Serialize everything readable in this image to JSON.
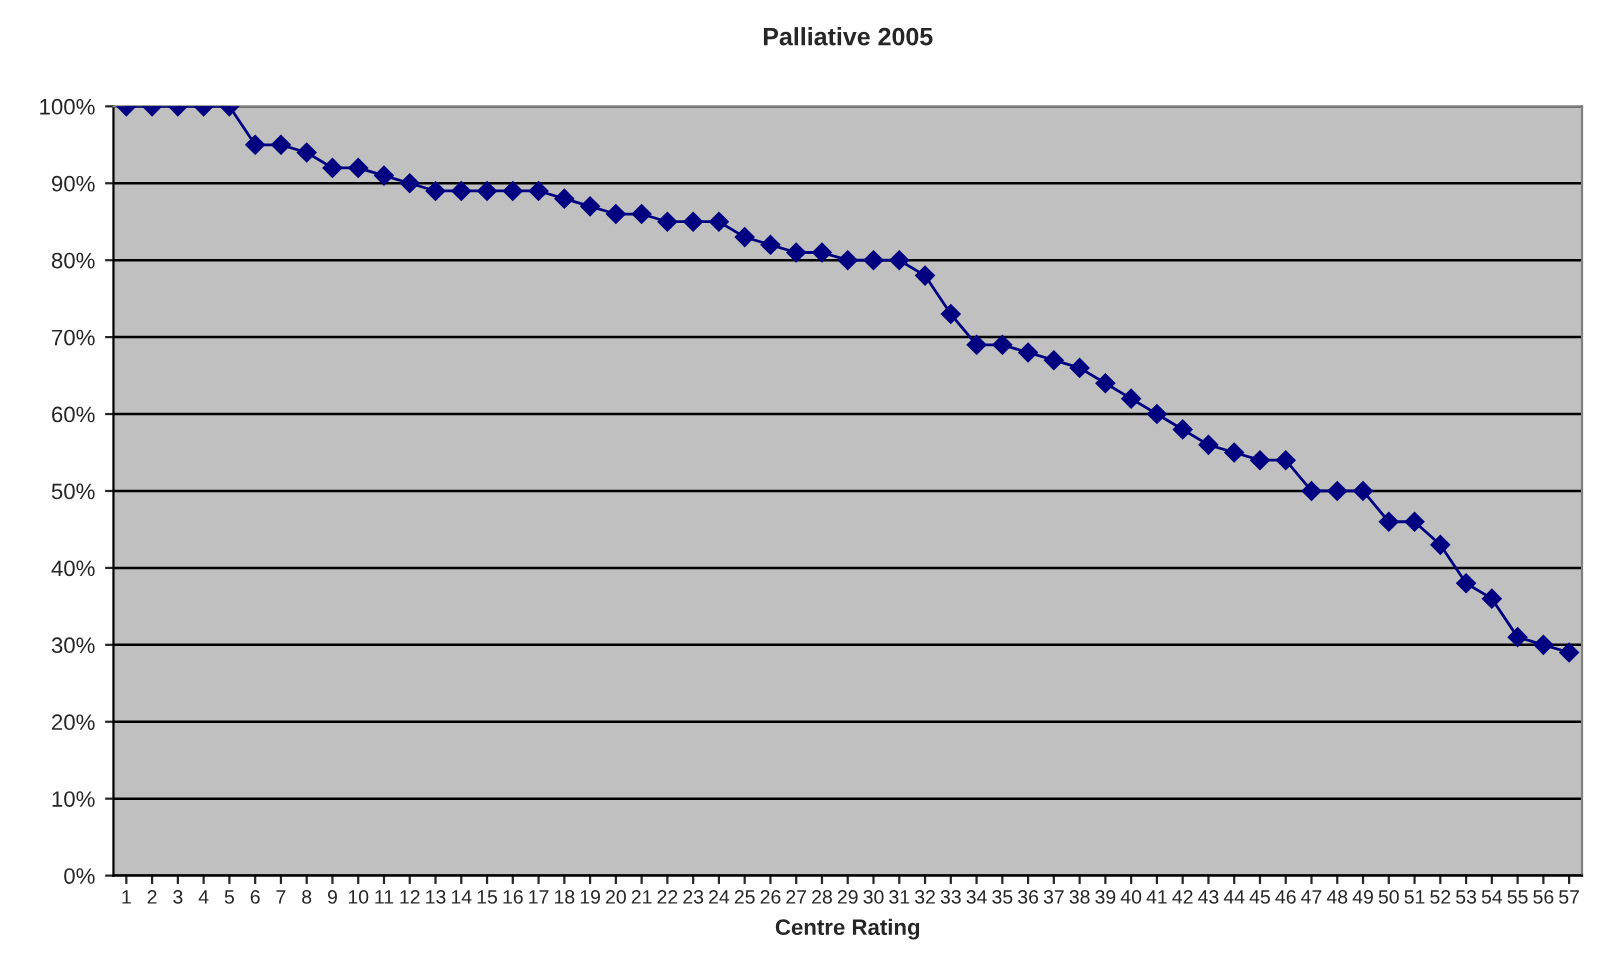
{
  "chart_data": {
    "type": "line",
    "title": "Palliative 2005",
    "xlabel": "Centre Rating",
    "categories": [
      "1",
      "2",
      "3",
      "4",
      "5",
      "6",
      "7",
      "8",
      "9",
      "10",
      "11",
      "12",
      "13",
      "14",
      "15",
      "16",
      "17",
      "18",
      "19",
      "20",
      "21",
      "22",
      "23",
      "24",
      "25",
      "26",
      "27",
      "28",
      "29",
      "30",
      "31",
      "32",
      "33",
      "34",
      "35",
      "36",
      "37",
      "38",
      "39",
      "40",
      "41",
      "42",
      "43",
      "44",
      "45",
      "46",
      "47",
      "48",
      "49",
      "50",
      "51",
      "52",
      "53",
      "54",
      "55",
      "56",
      "57"
    ],
    "series": [
      {
        "color": "#000080",
        "values": [
          100,
          100,
          100,
          100,
          100,
          95,
          95,
          94,
          92,
          92,
          91,
          90,
          89,
          89,
          89,
          89,
          89,
          88,
          87,
          86,
          86,
          85,
          85,
          85,
          83,
          82,
          81,
          81,
          80,
          80,
          80,
          78,
          73,
          69,
          69,
          68,
          67,
          66,
          64,
          62,
          60,
          58,
          56,
          55,
          54,
          54,
          50,
          50,
          50,
          46,
          46,
          43,
          38,
          36,
          31,
          30,
          29
        ]
      }
    ],
    "ylim": [
      0,
      100
    ],
    "yticks": [
      {
        "value": 0,
        "label": "0%"
      },
      {
        "value": 10,
        "label": "10%"
      },
      {
        "value": 20,
        "label": "20%"
      },
      {
        "value": 30,
        "label": "30%"
      },
      {
        "value": 40,
        "label": "40%"
      },
      {
        "value": 50,
        "label": "50%"
      },
      {
        "value": 60,
        "label": "60%"
      },
      {
        "value": 70,
        "label": "70%"
      },
      {
        "value": 80,
        "label": "80%"
      },
      {
        "value": 90,
        "label": "90%"
      },
      {
        "value": 100,
        "label": "100%"
      }
    ],
    "grid": "y",
    "legend": false,
    "marker": "diamond",
    "line_style": "solid"
  }
}
